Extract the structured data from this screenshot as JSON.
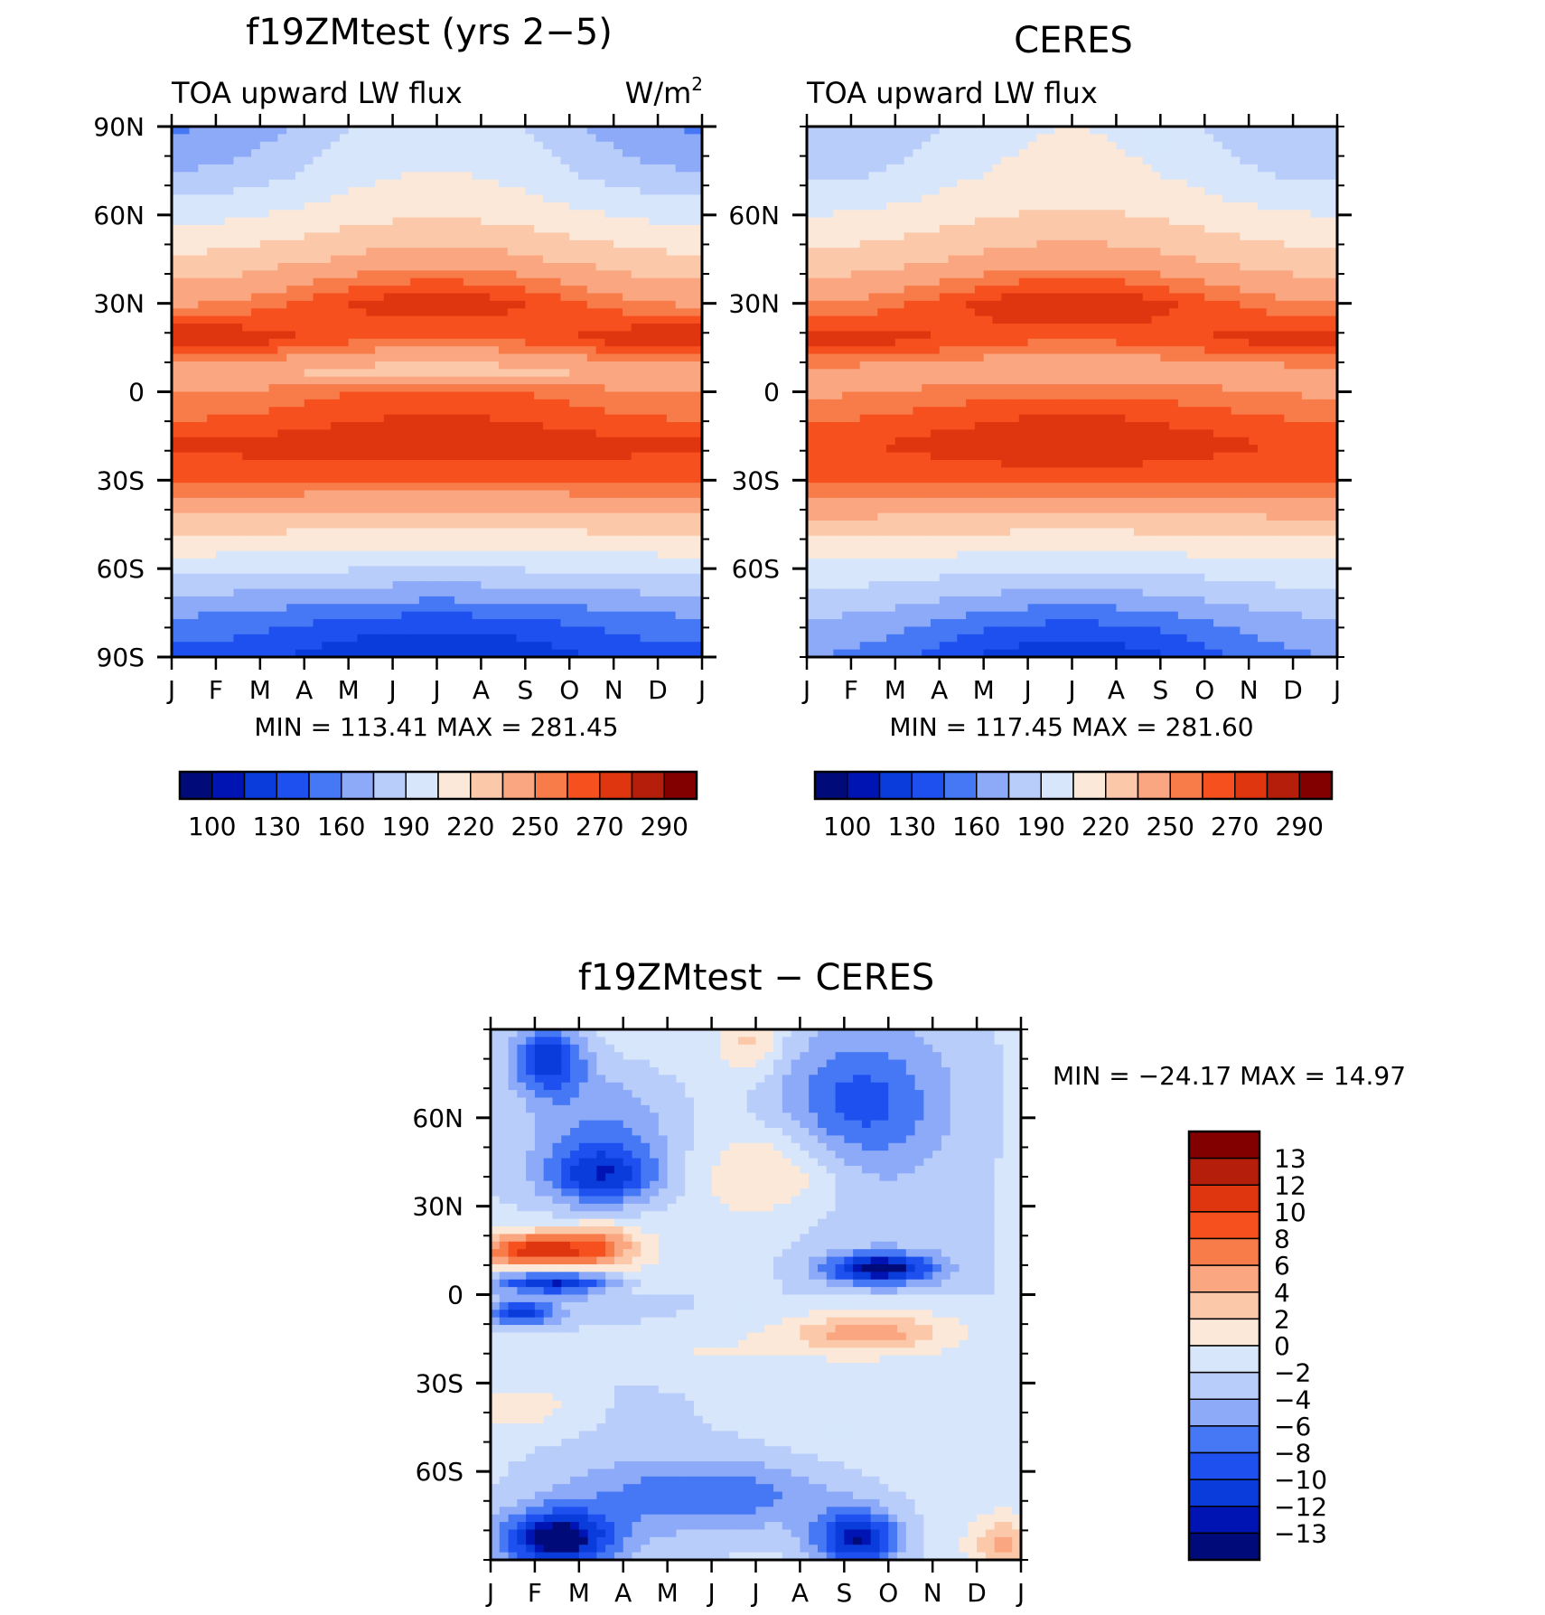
{
  "chart_data": [
    {
      "type": "heatmap",
      "title": "f19ZMtest (yrs 2−5)",
      "subtitle": "TOA upward LW flux",
      "units_label": "W/m",
      "units_exp": "2",
      "x_ticks": [
        "J",
        "F",
        "M",
        "A",
        "M",
        "J",
        "J",
        "A",
        "S",
        "O",
        "N",
        "D",
        "J"
      ],
      "y_ticks": [
        "90N",
        "60N",
        "30N",
        "0",
        "30S",
        "60S",
        "90S"
      ],
      "ylim": [
        -90,
        90
      ],
      "stats": "MIN = 113.41 MAX = 281.45",
      "min": 113.41,
      "max": 281.45,
      "colorbar_labels": [
        "100",
        "130",
        "160",
        "190",
        "220",
        "250",
        "270",
        "290"
      ],
      "levels": [
        100,
        115,
        130,
        145,
        160,
        175,
        190,
        205,
        220,
        235,
        250,
        260,
        270,
        280,
        290
      ],
      "colors": [
        "#000a78",
        "#0014b4",
        "#0a3cdc",
        "#1e50f0",
        "#4678f5",
        "#8caaf8",
        "#b9cdfa",
        "#d7e6fb",
        "#fce8d8",
        "#fcc8aa",
        "#faa680",
        "#f87c4a",
        "#f6501e",
        "#e03610",
        "#b41e0a",
        "#820000"
      ],
      "profile_lat": [
        -90,
        -80,
        -70,
        -60,
        -45,
        -30,
        -18,
        -8,
        0,
        7,
        18,
        30,
        45,
        60,
        75,
        90
      ],
      "profile_jan": [
        140,
        152,
        172,
        195,
        228,
        263,
        272,
        258,
        250,
        238,
        282,
        248,
        223,
        200,
        175,
        158
      ],
      "profile_jul": [
        113,
        132,
        162,
        190,
        222,
        260,
        281,
        270,
        262,
        228,
        258,
        278,
        242,
        218,
        205,
        200
      ]
    },
    {
      "type": "heatmap",
      "title": "CERES",
      "subtitle": "TOA upward LW flux",
      "x_ticks": [
        "J",
        "F",
        "M",
        "A",
        "M",
        "J",
        "J",
        "A",
        "S",
        "O",
        "N",
        "D",
        "J"
      ],
      "y_ticks": [
        "60N",
        "30N",
        "0",
        "30S",
        "60S"
      ],
      "ylim": [
        -90,
        90
      ],
      "stats": "MIN = 117.45 MAX = 281.60",
      "min": 117.45,
      "max": 281.6,
      "colorbar_labels": [
        "100",
        "130",
        "160",
        "190",
        "220",
        "250",
        "270",
        "290"
      ],
      "profile_lat": [
        -90,
        -80,
        -70,
        -60,
        -45,
        -30,
        -18,
        -8,
        0,
        7,
        18,
        30,
        45,
        60,
        75,
        90
      ],
      "profile_jan": [
        160,
        170,
        185,
        200,
        230,
        263,
        268,
        258,
        248,
        245,
        278,
        250,
        225,
        205,
        185,
        175
      ],
      "profile_jul": [
        117,
        140,
        168,
        192,
        225,
        262,
        281,
        270,
        258,
        236,
        262,
        280,
        243,
        222,
        210,
        205
      ]
    },
    {
      "type": "heatmap",
      "title": "f19ZMtest − CERES",
      "x_ticks": [
        "J",
        "F",
        "M",
        "A",
        "M",
        "J",
        "J",
        "A",
        "S",
        "O",
        "N",
        "D",
        "J"
      ],
      "y_ticks": [
        "60N",
        "30N",
        "0",
        "30S",
        "60S"
      ],
      "ylim": [
        -90,
        90
      ],
      "stats": "MIN = −24.17 MAX =  14.97",
      "min": -24.17,
      "max": 14.97,
      "colorbar_labels": [
        "13",
        "12",
        "10",
        "8",
        "6",
        "4",
        "2",
        "0",
        "−2",
        "−4",
        "−6",
        "−8",
        "−10",
        "−12",
        "−13"
      ],
      "levels": [
        -13,
        -12,
        -10,
        -8,
        -6,
        -4,
        -2,
        0,
        2,
        4,
        6,
        8,
        10,
        12,
        13
      ],
      "colors": [
        "#000a78",
        "#0014b4",
        "#0a3cdc",
        "#1e50f0",
        "#4678f5",
        "#8caaf8",
        "#b9cdfa",
        "#d7e6fb",
        "#fce8d8",
        "#fcc8aa",
        "#faa680",
        "#f87c4a",
        "#f6501e",
        "#e03610",
        "#b41e0a",
        "#820000"
      ],
      "anomalies": [
        {
          "month": 1.0,
          "lat": 15,
          "dm": 1.4,
          "dl": 6,
          "value": 12
        },
        {
          "month": 2.5,
          "lat": 17,
          "dm": 0.8,
          "dl": 7,
          "value": 6
        },
        {
          "month": 1.5,
          "lat": 4,
          "dm": 1.4,
          "dl": 4,
          "value": -12
        },
        {
          "month": 0.7,
          "lat": -6,
          "dm": 0.8,
          "dl": 4,
          "value": -10
        },
        {
          "month": 1.3,
          "lat": 80,
          "dm": 0.8,
          "dl": 12,
          "value": -10
        },
        {
          "month": 2.6,
          "lat": 55,
          "dm": 1.8,
          "dl": 25,
          "value": -6
        },
        {
          "month": 2.5,
          "lat": 40,
          "dm": 1.3,
          "dl": 10,
          "value": -8
        },
        {
          "month": 6.5,
          "lat": 42,
          "dm": 1.6,
          "dl": 15,
          "value": 4
        },
        {
          "month": 5.9,
          "lat": 85,
          "dm": 0.7,
          "dl": 10,
          "value": 4
        },
        {
          "month": 8.8,
          "lat": 9,
          "dm": 1.2,
          "dl": 5,
          "value": -12
        },
        {
          "month": 8.5,
          "lat": -13,
          "dm": 1.8,
          "dl": 6,
          "value": 6
        },
        {
          "month": 8.3,
          "lat": 65,
          "dm": 1.8,
          "dl": 22,
          "value": -6
        },
        {
          "month": 1.5,
          "lat": -83,
          "dm": 1.3,
          "dl": 10,
          "value": -13
        },
        {
          "month": 8.3,
          "lat": -83,
          "dm": 1.0,
          "dl": 10,
          "value": -12
        },
        {
          "month": 5.0,
          "lat": -68,
          "dm": 3.0,
          "dl": 12,
          "value": -6
        },
        {
          "month": 0.8,
          "lat": -38,
          "dm": 1.2,
          "dl": 8,
          "value": 3
        },
        {
          "month": 4.5,
          "lat": -20,
          "dm": 2.5,
          "dl": 8,
          "value": 2
        },
        {
          "month": 11.6,
          "lat": -85,
          "dm": 0.7,
          "dl": 10,
          "value": 6
        }
      ]
    }
  ]
}
